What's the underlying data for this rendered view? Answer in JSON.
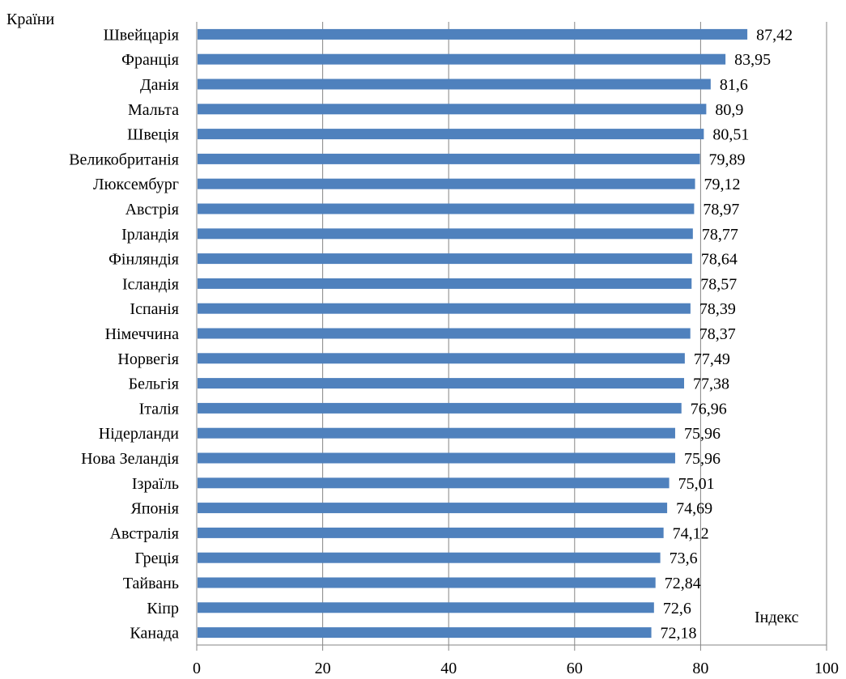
{
  "chart_data": {
    "type": "bar",
    "orientation": "horizontal",
    "ylabel": "Країни",
    "xlabel": "Індекс",
    "categories": [
      "Швейцарія",
      "Франція",
      "Данія",
      "Мальта",
      "Швеція",
      "Великобританія",
      "Люксембург",
      "Австрія",
      "Ірландія",
      "Фінляндія",
      "Ісландія",
      "Іспанія",
      "Німеччина",
      "Норвегія",
      "Бельгія",
      "Італія",
      "Нідерланди",
      "Нова Зеландія",
      "Ізраїль",
      "Японія",
      "Австралія",
      "Греція",
      "Тайвань",
      "Кіпр",
      "Канада"
    ],
    "values": [
      87.42,
      83.95,
      81.6,
      80.9,
      80.51,
      79.89,
      79.12,
      78.97,
      78.77,
      78.64,
      78.57,
      78.39,
      78.37,
      77.49,
      77.38,
      76.96,
      75.96,
      75.96,
      75.01,
      74.69,
      74.12,
      73.6,
      72.84,
      72.6,
      72.18
    ],
    "value_labels": [
      "87,42",
      "83,95",
      "81,6",
      "80,9",
      "80,51",
      "79,89",
      "79,12",
      "78,97",
      "78,77",
      "78,64",
      "78,57",
      "78,39",
      "78,37",
      "77,49",
      "77,38",
      "76,96",
      "75,96",
      "75,96",
      "75,01",
      "74,69",
      "74,12",
      "73,6",
      "72,84",
      "72,6",
      "72,18"
    ],
    "xlim": [
      0,
      100
    ],
    "xticks": [
      "0",
      "20",
      "40",
      "60",
      "80",
      "100"
    ],
    "grid": true,
    "bar_color": "#4f81bd",
    "grid_color": "#868686"
  }
}
